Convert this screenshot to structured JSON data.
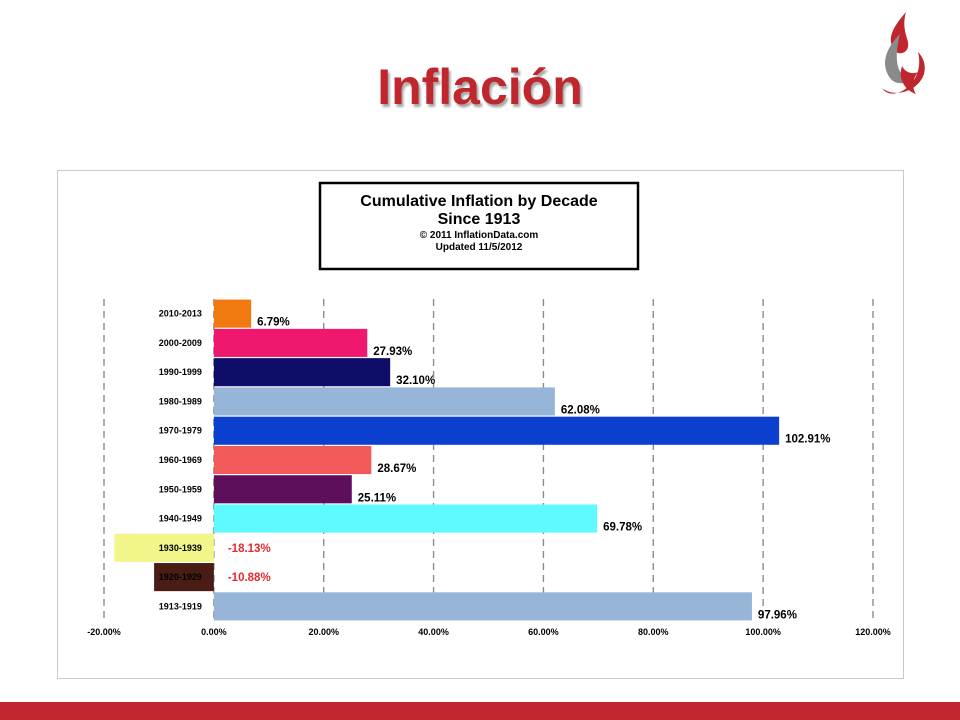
{
  "slide": {
    "title": "Inflación"
  },
  "colors": {
    "accent": "#c0262d",
    "logo_gray": "#8a8a8a",
    "negative_label": "#e8282b"
  },
  "chart_data": {
    "type": "bar",
    "orientation": "horizontal",
    "title": "Cumulative Inflation by Decade",
    "subtitle": "Since 1913",
    "notes": [
      "© 2011  InflationData.com",
      "Updated  11/5/2012"
    ],
    "categories": [
      "2010-2013",
      "2000-2009",
      "1990-1999",
      "1980-1989",
      "1970-1979",
      "1960-1969",
      "1950-1959",
      "1940-1949",
      "1930-1939",
      "1920-1929",
      "1913-1919"
    ],
    "values": [
      6.79,
      27.93,
      32.1,
      62.08,
      102.91,
      28.67,
      25.11,
      69.78,
      -18.13,
      -10.88,
      97.96
    ],
    "value_labels": [
      "6.79%",
      "27.93%",
      "32.10%",
      "62.08%",
      "102.91%",
      "28.67%",
      "25.11%",
      "69.78%",
      "-18.13%",
      "-10.88%",
      "97.96%"
    ],
    "bar_colors": [
      "#f07a10",
      "#f0186e",
      "#0e0e6a",
      "#97b4d9",
      "#0a3fcf",
      "#f25a5a",
      "#5e0f5c",
      "#5ffaff",
      "#f2f58a",
      "#4a1d14",
      "#97b4d9"
    ],
    "xlim": [
      -20,
      120
    ],
    "xticks": [
      -20,
      0,
      20,
      40,
      60,
      80,
      100,
      120
    ],
    "xtick_labels": [
      "-20.00%",
      "0.00%",
      "20.00%",
      "40.00%",
      "60.00%",
      "80.00%",
      "100.00%",
      "120.00%"
    ],
    "grid": "vertical dashed"
  }
}
